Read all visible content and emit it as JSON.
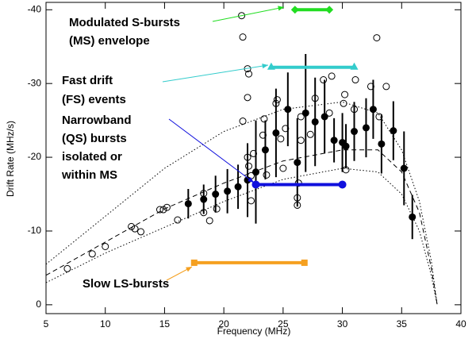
{
  "chart_data": {
    "type": "scatter",
    "xlabel": "Frequency (MHz)",
    "ylabel": "Drift Rate (MHz/s)",
    "xlim": [
      5,
      40
    ],
    "ylim": [
      1.2,
      -41
    ],
    "xticks": [
      5,
      10,
      15,
      20,
      25,
      30,
      35,
      40
    ],
    "yticks": [
      0,
      -10,
      -20,
      -30,
      -40
    ],
    "points_open": {
      "x": [
        6.8,
        8.9,
        10.0,
        12.2,
        12.5,
        13.0,
        14.6,
        14.9,
        15.2,
        16.1,
        18.3,
        18.3,
        18.8,
        19.4,
        21.5,
        21.6,
        21.6,
        22.0,
        22.0,
        22.1,
        22.0,
        22.1,
        22.3,
        22.3,
        22.5,
        23.3,
        23.4,
        23.6,
        24.4,
        24.5,
        24.8,
        25.0,
        25.2,
        26.2,
        26.2,
        26.3,
        26.5,
        26.5,
        27.3,
        27.7,
        28.4,
        28.9,
        29.1,
        30.1,
        30.2,
        30.3,
        31.0,
        31.1,
        32.4,
        32.9,
        33.1,
        33.7
      ],
      "y": [
        -4.9,
        -6.9,
        -7.9,
        -10.6,
        -10.3,
        -9.9,
        -12.9,
        -12.9,
        -13.2,
        -11.5,
        -12.5,
        -15.1,
        -11.4,
        -13.0,
        -39.2,
        -36.3,
        -24.9,
        -28.1,
        -32.0,
        -31.3,
        -20.0,
        -18.8,
        -14.1,
        -17.5,
        -20.5,
        -23.0,
        -25.2,
        -17.6,
        -27.3,
        -27.8,
        -22.5,
        -18.5,
        -23.9,
        -13.5,
        -14.5,
        -16.5,
        -22.3,
        -25.5,
        -23.1,
        -28.0,
        -30.5,
        -26.0,
        -31.0,
        -27.3,
        -28.5,
        -18.3,
        -26.5,
        -30.5,
        -29.6,
        -36.2,
        -25.5,
        -29.6
      ]
    },
    "points_filled": {
      "x": [
        17.0,
        18.3,
        19.3,
        20.3,
        21.2,
        22.0,
        22.7,
        23.5,
        24.4,
        25.4,
        26.2,
        26.9,
        27.7,
        28.5,
        29.3,
        30.0,
        30.3,
        31.0,
        32.0,
        32.6,
        33.3,
        34.3,
        35.2,
        35.9
      ],
      "y": [
        -13.7,
        -14.3,
        -15.0,
        -15.4,
        -16.0,
        -16.9,
        -18.0,
        -21.0,
        -23.3,
        -26.5,
        -19.3,
        -26.0,
        -24.8,
        -25.5,
        -22.3,
        -22.0,
        -21.5,
        -23.5,
        -24.0,
        -26.5,
        -21.8,
        -23.6,
        -18.5,
        -11.9
      ],
      "error": [
        2,
        2,
        2.5,
        3,
        3,
        5,
        7,
        4,
        6,
        5,
        6,
        8,
        6,
        5,
        3,
        4,
        3,
        4,
        4,
        4,
        4,
        4,
        5,
        3
      ]
    },
    "curves": [
      {
        "style": "dotted",
        "x": [
          5,
          10,
          15,
          20,
          25,
          30,
          33,
          35,
          36.5,
          37.5,
          38
        ],
        "y": [
          -5.5,
          -12,
          -18.5,
          -23.5,
          -26.5,
          -27.5,
          -26,
          -21,
          -14,
          -6,
          0
        ]
      },
      {
        "style": "dashed",
        "x": [
          5,
          10,
          15,
          20,
          25,
          30,
          33,
          35,
          36.5,
          37.5,
          38
        ],
        "y": [
          -4,
          -8.5,
          -13,
          -16.5,
          -19.5,
          -21,
          -21,
          -18,
          -12.5,
          -5,
          0
        ]
      },
      {
        "style": "dotted",
        "x": [
          5,
          10,
          15,
          20,
          25,
          30,
          33,
          35,
          36.5,
          37.5,
          38
        ],
        "y": [
          -3,
          -7,
          -10.5,
          -14,
          -17,
          -18.5,
          -18,
          -15,
          -10,
          -4,
          0
        ]
      }
    ],
    "ranges": [
      {
        "x": [
          26,
          28.9
        ],
        "y": -40,
        "color": "#22dd22",
        "marker": "diamond"
      },
      {
        "x": [
          24,
          31
        ],
        "y": -32.2,
        "color": "#33cccc",
        "marker": "triangle"
      },
      {
        "x": [
          22.7,
          30
        ],
        "y": -16.3,
        "color": "#1010dd",
        "marker": "circle"
      },
      {
        "x": [
          17.5,
          26.8
        ],
        "y": -5.7,
        "color": "#f5a020",
        "marker": "square"
      }
    ],
    "annotations": [
      {
        "lines": [
          "Modulated S-bursts",
          "(MS) envelope"
        ],
        "color": "#22dd22"
      },
      {
        "lines": [
          "Fast drift",
          "(FS) events"
        ],
        "color": "#33cccc"
      },
      {
        "lines": [
          "Narrowband",
          "(QS) bursts",
          "isolated or",
          "within MS"
        ],
        "color": "#1010dd"
      },
      {
        "lines": [
          "Slow LS-bursts"
        ],
        "color": "#f5a020"
      }
    ]
  }
}
